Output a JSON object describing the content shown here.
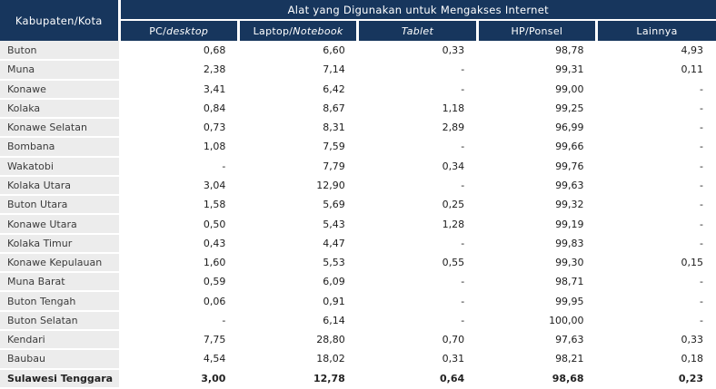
{
  "colors": {
    "header_bg": "#17365D",
    "label_bg": "#ECECEC",
    "header_text": "#FFFFFF"
  },
  "table": {
    "row_header": "Kabupaten/Kota",
    "group_header": "Alat yang Digunakan untuk Mengakses Internet",
    "columns": [
      {
        "prefix": "PC/",
        "italic": "desktop"
      },
      {
        "prefix": "Laptop/",
        "italic": "Notebook"
      },
      {
        "prefix": "",
        "italic": "Tablet"
      },
      {
        "prefix": "HP/Ponsel",
        "italic": ""
      },
      {
        "prefix": "Lainnya",
        "italic": ""
      }
    ],
    "rows": [
      {
        "name": "Buton",
        "values": [
          "0,68",
          "6,60",
          "0,33",
          "98,78",
          "4,93"
        ],
        "bold": false
      },
      {
        "name": "Muna",
        "values": [
          "2,38",
          "7,14",
          "-",
          "99,31",
          "0,11"
        ],
        "bold": false
      },
      {
        "name": "Konawe",
        "values": [
          "3,41",
          "6,42",
          "-",
          "99,00",
          "-"
        ],
        "bold": false
      },
      {
        "name": "Kolaka",
        "values": [
          "0,84",
          "8,67",
          "1,18",
          "99,25",
          "-"
        ],
        "bold": false
      },
      {
        "name": "Konawe Selatan",
        "values": [
          "0,73",
          "8,31",
          "2,89",
          "96,99",
          "-"
        ],
        "bold": false
      },
      {
        "name": "Bombana",
        "values": [
          "1,08",
          "7,59",
          "-",
          "99,66",
          "-"
        ],
        "bold": false
      },
      {
        "name": "Wakatobi",
        "values": [
          "-",
          "7,79",
          "0,34",
          "99,76",
          "-"
        ],
        "bold": false
      },
      {
        "name": "Kolaka Utara",
        "values": [
          "3,04",
          "12,90",
          "-",
          "99,63",
          "-"
        ],
        "bold": false
      },
      {
        "name": "Buton Utara",
        "values": [
          "1,58",
          "5,69",
          "0,25",
          "99,32",
          "-"
        ],
        "bold": false
      },
      {
        "name": "Konawe Utara",
        "values": [
          "0,50",
          "5,43",
          "1,28",
          "99,19",
          "-"
        ],
        "bold": false
      },
      {
        "name": "Kolaka Timur",
        "values": [
          "0,43",
          "4,47",
          "-",
          "99,83",
          "-"
        ],
        "bold": false
      },
      {
        "name": "Konawe Kepulauan",
        "values": [
          "1,60",
          "5,53",
          "0,55",
          "99,30",
          "0,15"
        ],
        "bold": false
      },
      {
        "name": "Muna Barat",
        "values": [
          "0,59",
          "6,09",
          "-",
          "98,71",
          "-"
        ],
        "bold": false
      },
      {
        "name": "Buton Tengah",
        "values": [
          "0,06",
          "0,91",
          "-",
          "99,95",
          "-"
        ],
        "bold": false
      },
      {
        "name": "Buton Selatan",
        "values": [
          "-",
          "6,14",
          "-",
          "100,00",
          "-"
        ],
        "bold": false
      },
      {
        "name": "Kendari",
        "values": [
          "7,75",
          "28,80",
          "0,70",
          "97,63",
          "0,33"
        ],
        "bold": false
      },
      {
        "name": "Baubau",
        "values": [
          "4,54",
          "18,02",
          "0,31",
          "98,21",
          "0,18"
        ],
        "bold": false
      },
      {
        "name": "Sulawesi Tenggara",
        "values": [
          "3,00",
          "12,78",
          "0,64",
          "98,68",
          "0,23"
        ],
        "bold": true
      }
    ]
  },
  "chart_data": {
    "type": "table",
    "title": "Alat yang Digunakan untuk Mengakses Internet",
    "row_header": "Kabupaten/Kota",
    "columns": [
      "PC/desktop",
      "Laptop/Notebook",
      "Tablet",
      "HP/Ponsel",
      "Lainnya"
    ],
    "rows": [
      [
        "Buton",
        0.68,
        6.6,
        0.33,
        98.78,
        4.93
      ],
      [
        "Muna",
        2.38,
        7.14,
        null,
        99.31,
        0.11
      ],
      [
        "Konawe",
        3.41,
        6.42,
        null,
        99.0,
        null
      ],
      [
        "Kolaka",
        0.84,
        8.67,
        1.18,
        99.25,
        null
      ],
      [
        "Konawe Selatan",
        0.73,
        8.31,
        2.89,
        96.99,
        null
      ],
      [
        "Bombana",
        1.08,
        7.59,
        null,
        99.66,
        null
      ],
      [
        "Wakatobi",
        null,
        7.79,
        0.34,
        99.76,
        null
      ],
      [
        "Kolaka Utara",
        3.04,
        12.9,
        null,
        99.63,
        null
      ],
      [
        "Buton Utara",
        1.58,
        5.69,
        0.25,
        99.32,
        null
      ],
      [
        "Konawe Utara",
        0.5,
        5.43,
        1.28,
        99.19,
        null
      ],
      [
        "Kolaka Timur",
        0.43,
        4.47,
        null,
        99.83,
        null
      ],
      [
        "Konawe Kepulauan",
        1.6,
        5.53,
        0.55,
        99.3,
        0.15
      ],
      [
        "Muna Barat",
        0.59,
        6.09,
        null,
        98.71,
        null
      ],
      [
        "Buton Tengah",
        0.06,
        0.91,
        null,
        99.95,
        null
      ],
      [
        "Buton Selatan",
        null,
        6.14,
        null,
        100.0,
        null
      ],
      [
        "Kendari",
        7.75,
        28.8,
        0.7,
        97.63,
        0.33
      ],
      [
        "Baubau",
        4.54,
        18.02,
        0.31,
        98.21,
        0.18
      ],
      [
        "Sulawesi Tenggara",
        3.0,
        12.78,
        0.64,
        98.68,
        0.23
      ]
    ],
    "missing_value_marker": "-",
    "decimal_separator": ","
  }
}
